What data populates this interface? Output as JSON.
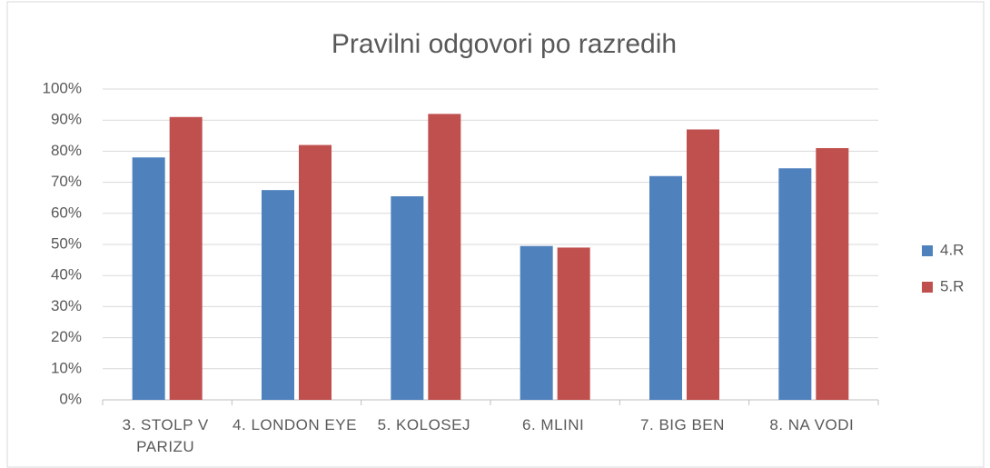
{
  "chart_data": {
    "type": "bar",
    "title": "Pravilni odgovori po razredih",
    "categories": [
      "3. STOLP V PARIZU",
      "4. LONDON EYE",
      "5. KOLOSEJ",
      "6. MLINI",
      "7. BIG BEN",
      "8. NA VODI"
    ],
    "series": [
      {
        "name": "4.R",
        "color": "#4f81bd",
        "values": [
          78,
          67.5,
          65.5,
          49.5,
          72,
          74.5
        ]
      },
      {
        "name": "5.R",
        "color": "#c0504d",
        "values": [
          91,
          82,
          92,
          49,
          87,
          81
        ]
      }
    ],
    "ylim": [
      0,
      100
    ],
    "yticks": [
      {
        "value": 0,
        "label": "0%"
      },
      {
        "value": 10,
        "label": "10%"
      },
      {
        "value": 20,
        "label": "20%"
      },
      {
        "value": 30,
        "label": "30%"
      },
      {
        "value": 40,
        "label": "40%"
      },
      {
        "value": 50,
        "label": "50%"
      },
      {
        "value": 60,
        "label": "60%"
      },
      {
        "value": 70,
        "label": "70%"
      },
      {
        "value": 80,
        "label": "80%"
      },
      {
        "value": 90,
        "label": "90%"
      },
      {
        "value": 100,
        "label": "100%"
      }
    ],
    "grid": true,
    "legend": "right"
  }
}
